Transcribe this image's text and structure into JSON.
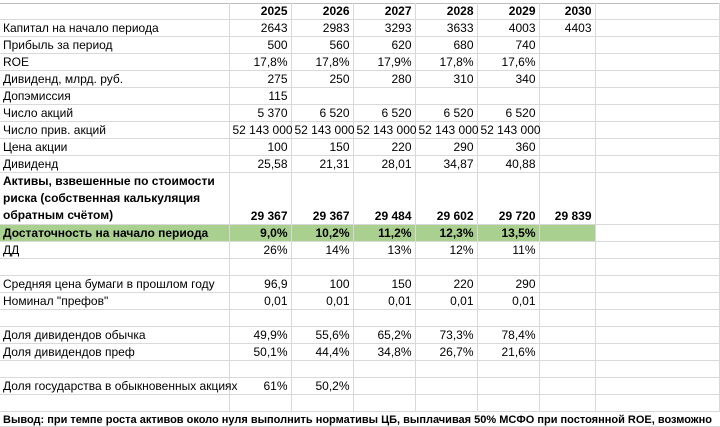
{
  "years": [
    "2025",
    "2026",
    "2027",
    "2028",
    "2029",
    "2030"
  ],
  "rows": [
    {
      "label": "Капитал на начало периода",
      "values": [
        "2643",
        "2983",
        "3293",
        "3633",
        "4003",
        "4403"
      ]
    },
    {
      "label": "Прибыль за период",
      "values": [
        "500",
        "560",
        "620",
        "680",
        "740",
        ""
      ]
    },
    {
      "label": "ROE",
      "values": [
        "17,8%",
        "17,8%",
        "17,9%",
        "17,8%",
        "17,6%",
        ""
      ]
    },
    {
      "label": "Дивиденд, млрд. руб.",
      "values": [
        "275",
        "250",
        "280",
        "310",
        "340",
        ""
      ]
    },
    {
      "label": "Допэмиссия",
      "values": [
        "115",
        "",
        "",
        "",
        "",
        ""
      ]
    },
    {
      "label": "Число акций",
      "values": [
        "5 370",
        "6 520",
        "6 520",
        "6 520",
        "6 520",
        ""
      ]
    },
    {
      "label": "Число прив. акций",
      "values": [
        "52 143 000",
        "52 143 000",
        "52 143 000",
        "52 143 000",
        "52 143 000",
        ""
      ]
    },
    {
      "label": "Цена акции",
      "values": [
        "100",
        "150",
        "220",
        "290",
        "360",
        ""
      ]
    },
    {
      "label": "Дивиденд",
      "values": [
        "25,58",
        "21,31",
        "28,01",
        "34,87",
        "40,88",
        ""
      ]
    },
    {
      "label": "Активы, взвешенные по стоимости риска (собственная калькуляция обратным счётом)",
      "values": [
        "29 367",
        "29 367",
        "29 484",
        "29 602",
        "29 720",
        "29 839"
      ]
    },
    {
      "label": "Достаточность на начало периода",
      "values": [
        "9,0%",
        "10,2%",
        "11,2%",
        "12,3%",
        "13,5%",
        ""
      ]
    },
    {
      "label": "ДД",
      "values": [
        "26%",
        "14%",
        "13%",
        "12%",
        "11%",
        ""
      ]
    },
    {
      "label": "",
      "values": [
        "",
        "",
        "",
        "",
        "",
        ""
      ]
    },
    {
      "label": "Средняя цена бумаги в прошлом году",
      "values": [
        "96,9",
        "100",
        "150",
        "220",
        "290",
        ""
      ]
    },
    {
      "label": "Номинал \"префов\"",
      "values": [
        "0,01",
        "0,01",
        "0,01",
        "0,01",
        "0,01",
        ""
      ]
    },
    {
      "label": "",
      "values": [
        "",
        "",
        "",
        "",
        "",
        ""
      ]
    },
    {
      "label": "Доля дивидендов обычка",
      "values": [
        "49,9%",
        "55,6%",
        "65,2%",
        "73,3%",
        "78,4%",
        ""
      ]
    },
    {
      "label": "Доля дивидендов преф",
      "values": [
        "50,1%",
        "44,4%",
        "34,8%",
        "26,7%",
        "21,6%",
        ""
      ]
    },
    {
      "label": "",
      "values": [
        "",
        "",
        "",
        "",
        "",
        ""
      ]
    },
    {
      "label": "Доля государства в обыкновенных акциях",
      "values": [
        "61%",
        "50,2%",
        "",
        "",
        "",
        ""
      ]
    },
    {
      "label": "",
      "values": [
        "",
        "",
        "",
        "",
        "",
        ""
      ]
    }
  ],
  "conclusion": "Вывод: при темпе роста активов около нуля выполнить нормативы ЦБ, выплачивая 50% МСФО при постоянной ROE, возможно"
}
